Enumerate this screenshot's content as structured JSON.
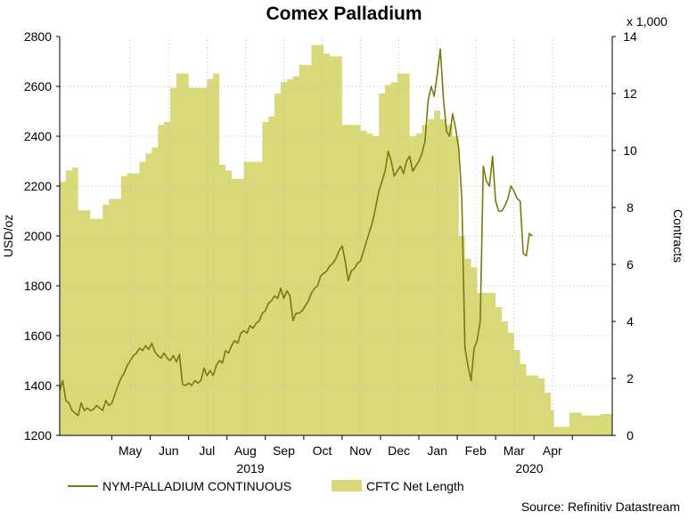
{
  "chart_data": {
    "type": "line+area",
    "title": "Comex Palladium",
    "y_left_label": "USD/oz",
    "y_right_label": "Contracts",
    "y_right_multiplier": "x 1,000",
    "y_left_range": [
      1200,
      2800
    ],
    "y_right_range": [
      0,
      14
    ],
    "y_left_ticks": [
      "1200",
      "1400",
      "1600",
      "1800",
      "2000",
      "2200",
      "2400",
      "2600",
      "2800"
    ],
    "y_right_ticks": [
      "0",
      "2",
      "4",
      "6",
      "8",
      "10",
      "12",
      "14"
    ],
    "month_labels": [
      "May",
      "Jun",
      "Jul",
      "Aug",
      "Sep",
      "Oct",
      "Nov",
      "Dec",
      "Jan",
      "Feb",
      "Mar",
      "Apr"
    ],
    "year_labels": [
      {
        "label": "2019",
        "under_month": "Aug"
      },
      {
        "label": "2020",
        "under_month": "Feb"
      }
    ],
    "grid": true,
    "source": "Source: Refinitiv Datastream",
    "colors": {
      "line": "#7a7a12",
      "area": "#d9d97a",
      "grid": "#bdbdbd"
    },
    "line_series": {
      "name": "NYM-PALLADIUM CONTINUOUS",
      "axis": "left",
      "points": [
        [
          0,
          1380
        ],
        [
          1,
          1420
        ],
        [
          2,
          1340
        ],
        [
          3,
          1330
        ],
        [
          4,
          1300
        ],
        [
          5,
          1290
        ],
        [
          6,
          1280
        ],
        [
          7,
          1330
        ],
        [
          8,
          1300
        ],
        [
          9,
          1310
        ],
        [
          10,
          1300
        ],
        [
          11,
          1305
        ],
        [
          12,
          1320
        ],
        [
          13,
          1310
        ],
        [
          14,
          1300
        ],
        [
          15,
          1340
        ],
        [
          16,
          1320
        ],
        [
          17,
          1330
        ],
        [
          18,
          1365
        ],
        [
          19,
          1400
        ],
        [
          20,
          1430
        ],
        [
          21,
          1450
        ],
        [
          22,
          1480
        ],
        [
          23,
          1500
        ],
        [
          24,
          1520
        ],
        [
          25,
          1530
        ],
        [
          26,
          1550
        ],
        [
          27,
          1540
        ],
        [
          28,
          1560
        ],
        [
          29,
          1545
        ],
        [
          30,
          1570
        ],
        [
          31,
          1535
        ],
        [
          32,
          1520
        ],
        [
          33,
          1510
        ],
        [
          34,
          1530
        ],
        [
          35,
          1510
        ],
        [
          36,
          1500
        ],
        [
          37,
          1520
        ],
        [
          38,
          1495
        ],
        [
          39,
          1525
        ],
        [
          40,
          1405
        ],
        [
          41,
          1400
        ],
        [
          42,
          1410
        ],
        [
          43,
          1400
        ],
        [
          44,
          1420
        ],
        [
          45,
          1410
        ],
        [
          46,
          1420
        ],
        [
          47,
          1470
        ],
        [
          48,
          1440
        ],
        [
          49,
          1460
        ],
        [
          50,
          1440
        ],
        [
          51,
          1480
        ],
        [
          52,
          1500
        ],
        [
          53,
          1490
        ],
        [
          54,
          1540
        ],
        [
          55,
          1530
        ],
        [
          56,
          1560
        ],
        [
          57,
          1580
        ],
        [
          58,
          1570
        ],
        [
          59,
          1610
        ],
        [
          60,
          1620
        ],
        [
          61,
          1610
        ],
        [
          62,
          1640
        ],
        [
          63,
          1630
        ],
        [
          64,
          1650
        ],
        [
          65,
          1660
        ],
        [
          66,
          1690
        ],
        [
          67,
          1700
        ],
        [
          68,
          1730
        ],
        [
          69,
          1740
        ],
        [
          70,
          1760
        ],
        [
          71,
          1750
        ],
        [
          72,
          1790
        ],
        [
          73,
          1750
        ],
        [
          74,
          1780
        ],
        [
          75,
          1760
        ],
        [
          76,
          1660
        ],
        [
          77,
          1690
        ],
        [
          78,
          1690
        ],
        [
          79,
          1700
        ],
        [
          80,
          1720
        ],
        [
          81,
          1740
        ],
        [
          82,
          1770
        ],
        [
          83,
          1790
        ],
        [
          84,
          1800
        ],
        [
          85,
          1840
        ],
        [
          86,
          1850
        ],
        [
          87,
          1860
        ],
        [
          88,
          1880
        ],
        [
          89,
          1890
        ],
        [
          90,
          1910
        ],
        [
          91,
          1940
        ],
        [
          92,
          1960
        ],
        [
          93,
          1900
        ],
        [
          94,
          1820
        ],
        [
          95,
          1860
        ],
        [
          96,
          1870
        ],
        [
          97,
          1890
        ],
        [
          98,
          1900
        ],
        [
          99,
          1940
        ],
        [
          100,
          1980
        ],
        [
          101,
          2020
        ],
        [
          102,
          2060
        ],
        [
          103,
          2120
        ],
        [
          104,
          2180
        ],
        [
          105,
          2220
        ],
        [
          106,
          2260
        ],
        [
          107,
          2340
        ],
        [
          108,
          2300
        ],
        [
          109,
          2240
        ],
        [
          110,
          2260
        ],
        [
          111,
          2280
        ],
        [
          112,
          2250
        ],
        [
          113,
          2300
        ],
        [
          114,
          2320
        ],
        [
          115,
          2260
        ],
        [
          116,
          2280
        ],
        [
          117,
          2300
        ],
        [
          118,
          2330
        ],
        [
          119,
          2380
        ],
        [
          120,
          2540
        ],
        [
          121,
          2600
        ],
        [
          122,
          2560
        ],
        [
          123,
          2650
        ],
        [
          124,
          2750
        ],
        [
          125,
          2550
        ],
        [
          126,
          2420
        ],
        [
          127,
          2400
        ],
        [
          128,
          2490
        ],
        [
          129,
          2430
        ],
        [
          130,
          2350
        ],
        [
          131,
          2150
        ],
        [
          132,
          1550
        ],
        [
          133,
          1480
        ],
        [
          134,
          1420
        ],
        [
          135,
          1550
        ],
        [
          136,
          1580
        ],
        [
          137,
          1660
        ],
        [
          138,
          2280
        ],
        [
          139,
          2220
        ],
        [
          140,
          2200
        ],
        [
          141,
          2320
        ],
        [
          142,
          2140
        ],
        [
          143,
          2100
        ],
        [
          144,
          2100
        ],
        [
          145,
          2120
        ],
        [
          146,
          2150
        ],
        [
          147,
          2200
        ],
        [
          148,
          2180
        ],
        [
          149,
          2150
        ],
        [
          150,
          2140
        ],
        [
          151,
          1930
        ],
        [
          152,
          1920
        ],
        [
          153,
          2010
        ],
        [
          154,
          2000
        ]
      ]
    },
    "area_series": {
      "name": "CFTC Net Length",
      "axis": "right",
      "points": [
        [
          0,
          8.9
        ],
        [
          2,
          9.3
        ],
        [
          4,
          9.4
        ],
        [
          6,
          7.9
        ],
        [
          8,
          7.9
        ],
        [
          10,
          7.6
        ],
        [
          12,
          7.6
        ],
        [
          14,
          8.1
        ],
        [
          16,
          8.3
        ],
        [
          18,
          8.3
        ],
        [
          20,
          9.1
        ],
        [
          22,
          9.2
        ],
        [
          24,
          9.2
        ],
        [
          26,
          9.6
        ],
        [
          28,
          9.9
        ],
        [
          30,
          10.1
        ],
        [
          32,
          10.9
        ],
        [
          34,
          11.0
        ],
        [
          36,
          12.2
        ],
        [
          38,
          12.7
        ],
        [
          40,
          12.7
        ],
        [
          42,
          12.2
        ],
        [
          44,
          12.2
        ],
        [
          46,
          12.2
        ],
        [
          48,
          12.5
        ],
        [
          50,
          12.7
        ],
        [
          52,
          9.5
        ],
        [
          54,
          9.3
        ],
        [
          56,
          9.0
        ],
        [
          58,
          9.0
        ],
        [
          60,
          9.6
        ],
        [
          62,
          9.6
        ],
        [
          64,
          9.6
        ],
        [
          66,
          11.0
        ],
        [
          68,
          11.2
        ],
        [
          70,
          12.0
        ],
        [
          72,
          12.4
        ],
        [
          74,
          12.5
        ],
        [
          76,
          12.6
        ],
        [
          78,
          13.0
        ],
        [
          80,
          13.0
        ],
        [
          82,
          13.7
        ],
        [
          84,
          13.7
        ],
        [
          86,
          13.4
        ],
        [
          88,
          13.3
        ],
        [
          90,
          13.3
        ],
        [
          92,
          10.9
        ],
        [
          94,
          10.9
        ],
        [
          96,
          10.9
        ],
        [
          98,
          10.7
        ],
        [
          100,
          10.6
        ],
        [
          102,
          10.5
        ],
        [
          104,
          12.0
        ],
        [
          106,
          12.3
        ],
        [
          108,
          12.4
        ],
        [
          110,
          12.7
        ],
        [
          112,
          12.7
        ],
        [
          114,
          10.5
        ],
        [
          116,
          10.6
        ],
        [
          118,
          10.9
        ],
        [
          120,
          11.1
        ],
        [
          122,
          11.4
        ],
        [
          124,
          11.1
        ],
        [
          126,
          10.9
        ],
        [
          128,
          10.5
        ],
        [
          130,
          7.0
        ],
        [
          132,
          6.2
        ],
        [
          134,
          5.9
        ],
        [
          136,
          5.0
        ],
        [
          138,
          5.0
        ],
        [
          140,
          5.0
        ],
        [
          142,
          4.5
        ],
        [
          144,
          4.0
        ],
        [
          146,
          3.6
        ],
        [
          148,
          3.0
        ],
        [
          150,
          2.5
        ],
        [
          152,
          2.1
        ],
        [
          154,
          2.1
        ],
        [
          156,
          2.0
        ],
        [
          158,
          1.5
        ],
        [
          160,
          0.9
        ],
        [
          161,
          0.3
        ],
        [
          164,
          0.3
        ],
        [
          166,
          0.8
        ],
        [
          168,
          0.8
        ],
        [
          170,
          0.7
        ],
        [
          172,
          0.7
        ],
        [
          174,
          0.7
        ],
        [
          176,
          0.75
        ],
        [
          178,
          0.75
        ],
        [
          180,
          0.7
        ]
      ]
    },
    "legend": {
      "line_label": "NYM-PALLADIUM CONTINUOUS",
      "area_label": "CFTC Net Length"
    }
  }
}
